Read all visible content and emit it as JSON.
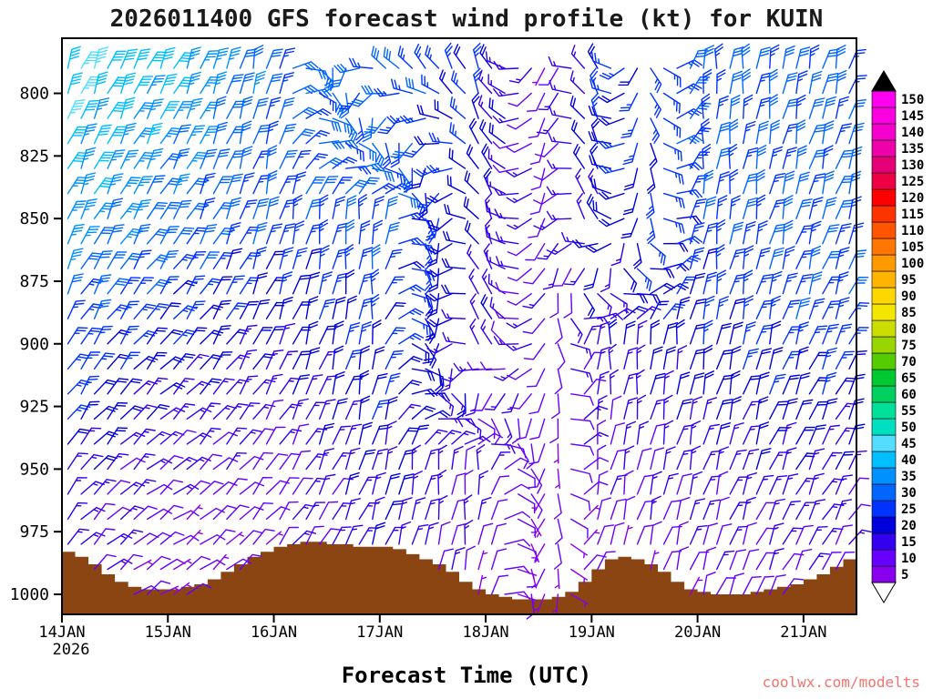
{
  "page": {
    "background": "#FFFFFF"
  },
  "chart_data": {
    "type": "wind-barb-profile",
    "title": "2026011400 GFS forecast wind profile (kt) for KUIN",
    "xlabel": "Forecast Time (UTC)",
    "watermark": "coolwx.com/modelts",
    "watermark_color": "#F4736E",
    "units": "kt",
    "station": "KUIN",
    "model": "GFS",
    "init_time": "2026011400",
    "y_axis": {
      "ticks": [
        800,
        825,
        850,
        875,
        900,
        925,
        950,
        975,
        1000
      ],
      "range": [
        778,
        1008
      ]
    },
    "x_axis": {
      "tick_labels": [
        "14JAN",
        "15JAN",
        "16JAN",
        "17JAN",
        "18JAN",
        "19JAN",
        "20JAN",
        "21JAN"
      ],
      "year_label": "2026",
      "days_span": 7.5,
      "time_steps_per_day": 8
    },
    "axis_color": "#000000",
    "colorbar": {
      "min": 5,
      "max": 150,
      "step": 5,
      "values": [
        5,
        10,
        15,
        20,
        25,
        30,
        35,
        40,
        45,
        50,
        55,
        60,
        65,
        70,
        75,
        80,
        85,
        90,
        95,
        100,
        105,
        110,
        115,
        120,
        125,
        130,
        135,
        140,
        145,
        150
      ],
      "colors": [
        "#8800EE",
        "#6600FF",
        "#3300F0",
        "#0000DD",
        "#0033FF",
        "#0066FF",
        "#0090FF",
        "#00BFFF",
        "#55DDFF",
        "#00E0C0",
        "#00E098",
        "#00D060",
        "#00C830",
        "#55CC00",
        "#99D500",
        "#CCDD00",
        "#F5E600",
        "#FFD700",
        "#FFB400",
        "#FF9900",
        "#FF7700",
        "#FF5500",
        "#FF3300",
        "#FF0000",
        "#EE0044",
        "#E60077",
        "#EE00AA",
        "#F500CC",
        "#FA00E0",
        "#FF00F0"
      ],
      "arrow_top_color": "#000000",
      "arrow_bottom_color": "#FFFFFF"
    },
    "terrain": {
      "color": "#8B4513",
      "surface_pressure_hpa": [
        983,
        985,
        988,
        992,
        995,
        997,
        998,
        998,
        998,
        997,
        996,
        994,
        991,
        988,
        985,
        983,
        981,
        980,
        979,
        979,
        980,
        980,
        981,
        981,
        981,
        982,
        984,
        986,
        988,
        991,
        995,
        998,
        1000,
        1001,
        1002,
        1002,
        1002,
        1001,
        999,
        995,
        990,
        986,
        985,
        986,
        988,
        991,
        995,
        998,
        999,
        1000,
        1000,
        1000,
        999,
        998,
        997,
        996,
        994,
        992,
        989,
        986
      ]
    },
    "wind_field": {
      "units": "kt",
      "barb_row_pressures": [
        790,
        800,
        810,
        820,
        830,
        840,
        850,
        860,
        870,
        880,
        890,
        900,
        910,
        920,
        930,
        940,
        950,
        960,
        970,
        980,
        990,
        1000
      ],
      "control_days": [
        0,
        1,
        2,
        3,
        4,
        4.6,
        5,
        6,
        7,
        7.5
      ],
      "control_pressures": [
        780,
        850,
        900,
        950,
        1010
      ],
      "speeds_kt": [
        [
          45,
          40,
          30,
          30,
          22,
          8,
          22,
          28,
          30,
          28
        ],
        [
          36,
          30,
          26,
          28,
          18,
          10,
          18,
          26,
          28,
          30
        ],
        [
          27,
          21,
          18,
          24,
          15,
          10,
          15,
          22,
          25,
          24
        ],
        [
          17,
          12,
          10,
          19,
          12,
          8,
          10,
          15,
          17,
          15
        ],
        [
          10,
          6,
          8,
          14,
          8,
          5,
          7,
          8,
          9,
          10
        ]
      ],
      "directions_deg": [
        [
          20,
          25,
          10,
          355,
          340,
          185,
          350,
          0,
          10,
          15
        ],
        [
          25,
          32,
          15,
          0,
          345,
          195,
          355,
          5,
          15,
          20
        ],
        [
          30,
          42,
          25,
          5,
          350,
          205,
          0,
          10,
          20,
          25
        ],
        [
          38,
          52,
          35,
          15,
          0,
          215,
          10,
          15,
          25,
          30
        ],
        [
          45,
          60,
          45,
          25,
          10,
          225,
          20,
          20,
          30,
          35
        ]
      ]
    }
  }
}
